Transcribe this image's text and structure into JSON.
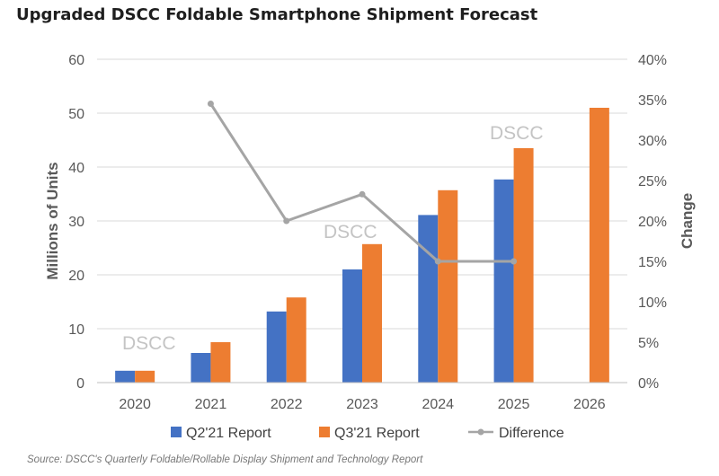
{
  "header": {
    "title": "Upgraded DSCC Foldable Smartphone Shipment Forecast"
  },
  "footer": {
    "source": "Source: DSCC's Quarterly Foldable/Rollable Display Shipment and Technology Report"
  },
  "watermarks": [
    "DSCC",
    "DSCC",
    "DSCC"
  ],
  "colors": {
    "q2_bar": "#4472C4",
    "q3_bar": "#ED7D31",
    "difference_line": "#A5A5A5",
    "grid": "#D9D9D9",
    "axis_text": "#595959"
  },
  "chart_data": {
    "type": "bar",
    "categories": [
      "2020",
      "2021",
      "2022",
      "2023",
      "2024",
      "2025",
      "2026"
    ],
    "series": [
      {
        "name": "Q2'21 Report",
        "type": "bar",
        "axis": "left",
        "values": [
          2.2,
          5.5,
          13.2,
          21.0,
          31.1,
          37.7,
          null
        ]
      },
      {
        "name": "Q3'21 Report",
        "type": "bar",
        "axis": "left",
        "values": [
          2.2,
          7.5,
          15.8,
          25.7,
          35.7,
          43.5,
          51.0
        ]
      },
      {
        "name": "Difference",
        "type": "line",
        "axis": "right",
        "values": [
          null,
          0.345,
          0.2,
          0.233,
          0.15,
          0.15,
          null
        ]
      }
    ],
    "ylabel": "Millions of Units",
    "y2label": "Change",
    "ylim": [
      0,
      60
    ],
    "y2lim": [
      0,
      0.4
    ],
    "yticks": [
      "0",
      "10",
      "20",
      "30",
      "40",
      "50",
      "60"
    ],
    "y2ticks": [
      "0%",
      "5%",
      "10%",
      "15%",
      "20%",
      "25%",
      "30%",
      "35%",
      "40%"
    ],
    "grid": true,
    "legend_position": "bottom"
  }
}
